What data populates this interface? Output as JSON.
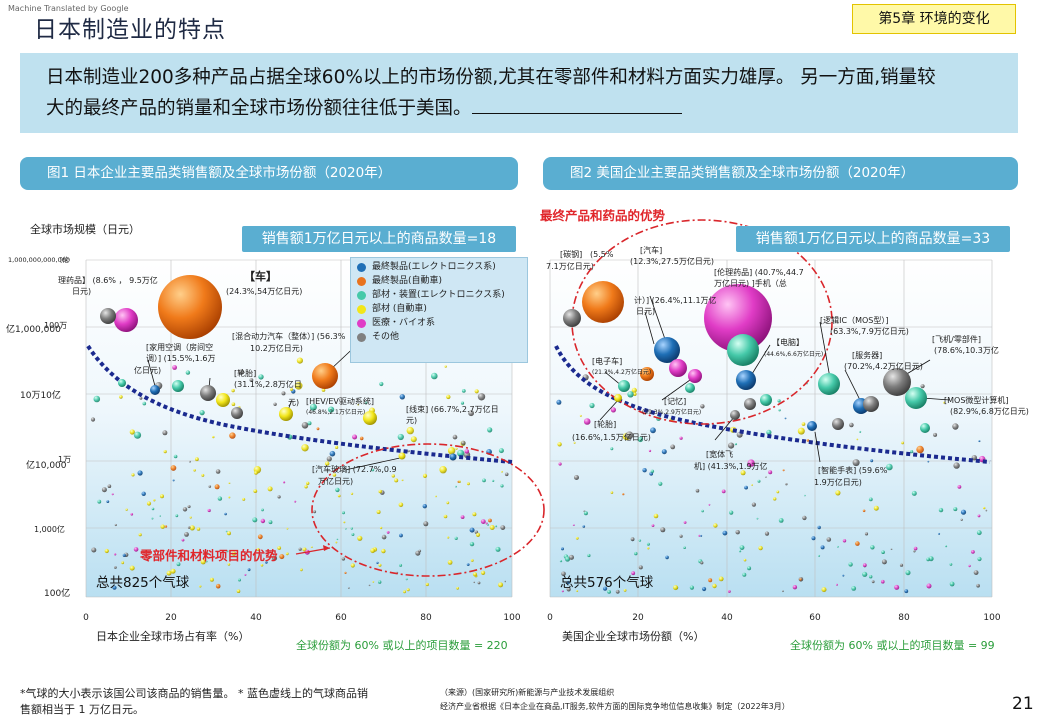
{
  "watermark": "Machine Translated by Google",
  "title": "日本制造业的特点",
  "chapter": "第5章 环境的变化",
  "summary": {
    "line1": "日本制造业200多种产品占据全球60%以上的市场份额,尤其在零部件和材料方面实力雄厚。 另一方面,销量较",
    "line2": "大的最终产品的销量和全球市场份额往往低于美国。"
  },
  "chart1": {
    "header": "图1 日本企业主要品类销售额及全球市场份额（2020年）",
    "ylabel": "全球市场规模（日元）",
    "xlabel": "日本企业全球市场占有率（%）",
    "xticks": [
      "0",
      "20",
      "40",
      "60",
      "80",
      "100"
    ],
    "yticks": [
      {
        "a": "1,000,000,000,000",
        "b": "[伦"
      },
      {
        "a": "100万",
        "b": "亿1,000,000"
      },
      {
        "a": "10万10亿",
        "b": ""
      },
      {
        "a": "1万",
        "b": "亿10,000"
      },
      {
        "a": "1,000亿",
        "b": ""
      },
      {
        "a": "100亿",
        "b": ""
      }
    ],
    "pill": "销售额1万亿日元以上的商品数量=18",
    "red_note": "零部件和材料项目的优势",
    "total": "总共825个气球",
    "green_note": "全球份额为 60% 或以上的项目数量 = 220",
    "legend": [
      {
        "label": "最終製品(エレクトロニクス系)",
        "color": "#1f6fb6"
      },
      {
        "label": "最終製品(自動車)",
        "color": "#e8731e"
      },
      {
        "label": "部材・装置(エレクトロニクス系)",
        "color": "#45c9a9"
      },
      {
        "label": "部材 (自動車)",
        "color": "#f2e61a"
      },
      {
        "label": "医療・バイオ系",
        "color": "#e03cc6"
      },
      {
        "label": "その他",
        "color": "#808080"
      }
    ],
    "annotations": {
      "car_title": "【车】",
      "car_val": "(24.3%,54万亿日元)",
      "medicine": "理药品】 (8.6% ， 9.5万亿",
      "medicine2": "日元)",
      "aircon": "[家用空调（房间空",
      "aircon2": "调）] (15.5%,1.6万",
      "aircon3": "亿日元)",
      "hybrid": "[混合动力汽车（整体）] (56.3%",
      "hybrid2": "10.2万亿日元)",
      "tire": "[轮胎]",
      "tire2": "(31.1%,2.8万亿日",
      "tire3": "元)",
      "hev": "[HEV/EV驱动系统]",
      "hev2": "(46.8%,2.1万亿日元)",
      "harness": "[线束] (66.7%,2.7万亿日",
      "harness2": "元)",
      "glass": "[汽车玻璃] (72.7%,0.9",
      "glass2": "万亿日元)"
    }
  },
  "chart2": {
    "header": "图2 美国企业主要品类销售额及全球市场份额（2020年）",
    "xlabel": "美国企业全球市场份额（%）",
    "xticks": [
      "0",
      "20",
      "40",
      "60",
      "80",
      "100"
    ],
    "pill": "销售额1万亿日元以上的商品数量=33",
    "red_note": "最终产品和药品的优势",
    "total": "总共576个气球",
    "green_note": "全球份额为 60% 或以上的项目数量 = 99",
    "annotations": {
      "ship": "[碳钢]",
      "ship2": "7.1万亿日元)",
      "ship3": "(5.5%",
      "car": "[汽车]",
      "car2": "(12.3%,27.5万亿日元)",
      "medicine": "[伦理药品] (40.7%,44.7",
      "medicine2": "万亿日元) ]手机（总",
      "calc": "计）] (26.4%,11.1万亿",
      "calc2": "日元)",
      "pc": "【电脑】",
      "pc2": "(44.6%,6.6万亿日元)",
      "mos": "[逻辑IC（MOS型）]",
      "mos2": "(63.3%,7.9万亿日元)",
      "server": "[服务器]",
      "server2": "(70.2%,4.2万亿日元)",
      "aircraft": "[飞机/零部件]",
      "aircraft2": "(78.6%,10.3万亿",
      "mcu": "[MOS微型计算机]",
      "mcu2": "(82.9%,6.8万亿日元)",
      "ecar": "[电子车]",
      "ecar2": "(21.3%,4.2万亿日元)",
      "mem": "[记忆]",
      "mem2": "(29.3%,2.9万亿日元)",
      "tire": "[轮胎]",
      "tire2": "(16.6%,1.5万亿日元)",
      "semi": "[宽体飞",
      "semi2": "机] (41.3%,1.9万亿",
      "watch": "[智能手表] (59.6%",
      "watch2": "1.9万亿日元)"
    }
  },
  "footnote": {
    "line1": "*气球的大小表示该国公司该商品的销售量。 * 蓝色虚线上的气球商品销",
    "line2": "售额相当于 1 万亿日元。"
  },
  "source": {
    "line1": "（来源）(国家研究所)新能源与产业技术发展组织",
    "line2": "经济产业省根据《日本企业在商品,IT服务,软件方面的国际竞争地位信息收集》制定（2022年3月）"
  },
  "page_number": "21"
}
